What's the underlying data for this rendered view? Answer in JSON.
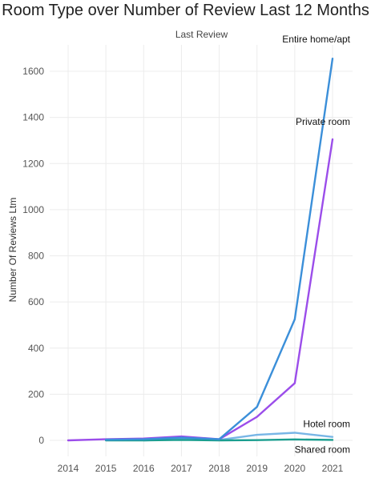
{
  "chart_data": {
    "type": "line",
    "title": "Room Type over Number of Review Last 12 Months",
    "subtitle": "Last Review",
    "xlabel": "",
    "ylabel": "Number Of Reviews Ltm",
    "x": [
      "2014",
      "2015",
      "2016",
      "2017",
      "2018",
      "2019",
      "2020",
      "2021"
    ],
    "yticks": [
      "0",
      "200",
      "400",
      "600",
      "800",
      "1000",
      "1200",
      "1400",
      "1600"
    ],
    "ylim": [
      -90,
      1710
    ],
    "grid": true,
    "legend": "none",
    "series": [
      {
        "name": "Entire home/apt",
        "color": "#3b8fd9",
        "x": [
          "2015",
          "2016",
          "2017",
          "2018",
          "2019",
          "2020",
          "2021"
        ],
        "values": [
          3,
          5,
          12,
          5,
          145,
          525,
          1655
        ]
      },
      {
        "name": "Private room",
        "color": "#9b4dea",
        "x": [
          "2014",
          "2015",
          "2016",
          "2017",
          "2018",
          "2019",
          "2020",
          "2021"
        ],
        "values": [
          0,
          5,
          8,
          17,
          5,
          102,
          248,
          1305
        ]
      },
      {
        "name": "Hotel room",
        "color": "#78b6e6",
        "x": [
          "2016",
          "2017",
          "2018",
          "2019",
          "2020",
          "2021"
        ],
        "values": [
          0,
          5,
          2,
          24,
          33,
          15
        ]
      },
      {
        "name": "Shared room",
        "color": "#1a9e8f",
        "x": [
          "2015",
          "2016",
          "2017",
          "2018",
          "2019",
          "2020",
          "2021"
        ],
        "values": [
          0,
          0,
          2,
          0,
          1,
          4,
          2
        ]
      }
    ]
  }
}
